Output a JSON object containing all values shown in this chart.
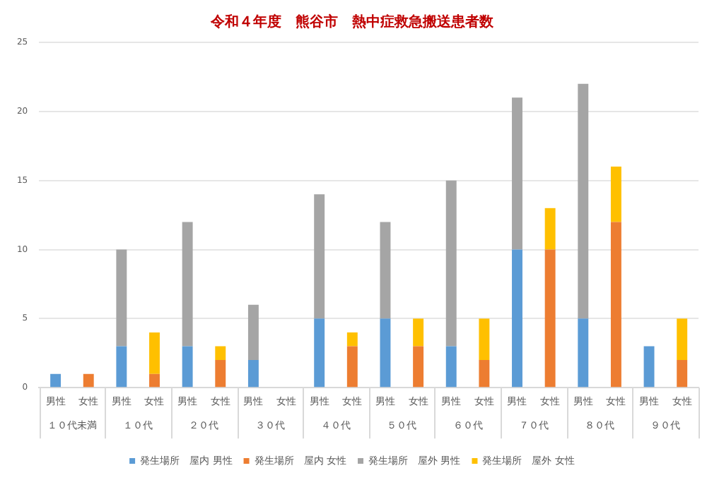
{
  "chart_data": {
    "type": "bar",
    "stacked": true,
    "title": "令和４年度　熊谷市　熱中症救急搬送患者数",
    "categories": [
      "男性",
      "女性",
      "男性",
      "女性",
      "男性",
      "女性",
      "男性",
      "女性",
      "男性",
      "女性",
      "男性",
      "女性",
      "男性",
      "女性",
      "男性",
      "女性",
      "男性",
      "女性",
      "男性",
      "女性"
    ],
    "annotations": [
      "１０代未満",
      "１０代",
      "２０代",
      "３０代",
      "４０代",
      "５０代",
      "６０代",
      "７０代",
      "８０代",
      "９０代"
    ],
    "series": [
      {
        "name": "発生場所　屋内 男性",
        "color": "#5b9bd5",
        "values": [
          1,
          null,
          3,
          null,
          3,
          null,
          2,
          null,
          5,
          null,
          5,
          null,
          3,
          null,
          10,
          null,
          5,
          null,
          3,
          null
        ]
      },
      {
        "name": "発生場所　屋内 女性",
        "color": "#ed7d31",
        "values": [
          null,
          1,
          null,
          1,
          null,
          2,
          null,
          null,
          null,
          3,
          null,
          3,
          null,
          2,
          null,
          10,
          null,
          12,
          null,
          2
        ]
      },
      {
        "name": "発生場所　屋外 男性",
        "color": "#a5a5a5",
        "values": [
          null,
          null,
          7,
          null,
          9,
          null,
          4,
          null,
          9,
          null,
          7,
          null,
          12,
          null,
          11,
          null,
          17,
          null,
          null,
          null
        ]
      },
      {
        "name": "発生場所　屋外 女性",
        "color": "#ffc000",
        "values": [
          null,
          null,
          null,
          3,
          null,
          1,
          null,
          null,
          null,
          1,
          null,
          2,
          null,
          3,
          null,
          3,
          null,
          4,
          null,
          3
        ]
      }
    ],
    "ylim": [
      0,
      25
    ],
    "yticks": [
      0,
      5,
      10,
      15,
      20,
      25
    ],
    "grid": "y",
    "legend": "bottom"
  }
}
